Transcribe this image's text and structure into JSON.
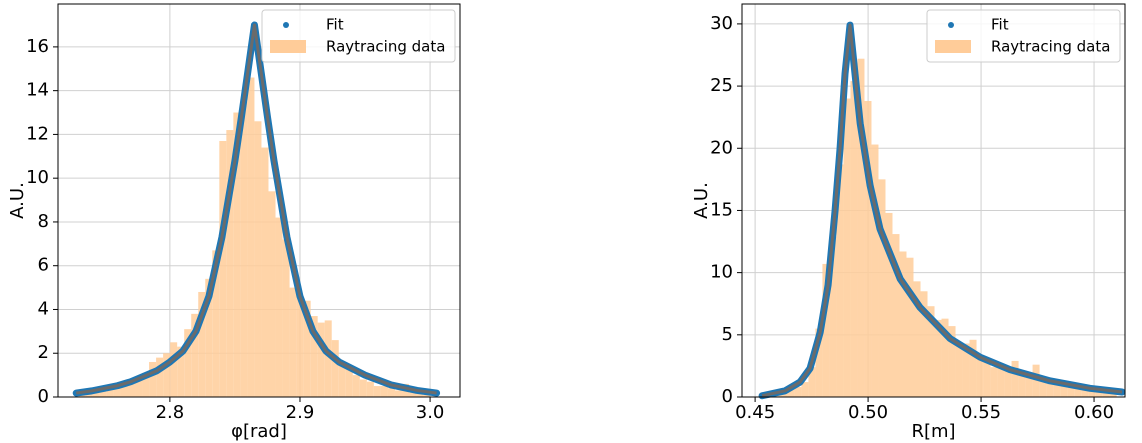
{
  "chart_data": [
    {
      "type": "histogram",
      "xlabel": "φ[rad]",
      "ylabel": "A.U.",
      "xlim": [
        2.714,
        3.023
      ],
      "ylim": [
        0,
        17.96
      ],
      "xticks": [
        2.8,
        2.9,
        {
          "value": 3,
          "label": "3.0"
        }
      ],
      "yticks": [
        0,
        2,
        4,
        6,
        8,
        10,
        12,
        14,
        16
      ],
      "grid": true,
      "legend": "upper right",
      "fit": {
        "name": "Fit",
        "color": "#1f77b4",
        "x": [
          2.728,
          2.74,
          2.75,
          2.76,
          2.77,
          2.78,
          2.79,
          2.8,
          2.81,
          2.82,
          2.83,
          2.84,
          2.85,
          2.855,
          2.86,
          2.865,
          2.87,
          2.875,
          2.88,
          2.89,
          2.9,
          2.91,
          2.92,
          2.93,
          2.95,
          2.97,
          2.99,
          3.005
        ],
        "values": [
          0.18,
          0.28,
          0.4,
          0.52,
          0.7,
          0.95,
          1.2,
          1.6,
          2.1,
          3.0,
          4.6,
          7.3,
          10.8,
          12.8,
          14.9,
          17,
          14.9,
          12.8,
          10.8,
          7.3,
          4.6,
          3.0,
          2.1,
          1.6,
          1.0,
          0.55,
          0.3,
          0.18
        ]
      },
      "hist": {
        "name": "Raytracing data",
        "color": "#ffcc99",
        "bins": [
          2.73,
          2.7354,
          2.7408,
          2.7462,
          2.7516,
          2.757,
          2.7624,
          2.7678,
          2.7732,
          2.7786,
          2.784,
          2.7894,
          2.7948,
          2.8002,
          2.8056,
          2.811,
          2.8164,
          2.8218,
          2.8272,
          2.8326,
          2.838,
          2.8434,
          2.8488,
          2.8542,
          2.8596,
          2.865,
          2.8704,
          2.8758,
          2.8812,
          2.8866,
          2.892,
          2.8974,
          2.9028,
          2.9082,
          2.9136,
          2.919,
          2.9244,
          2.9298,
          2.9352,
          2.9406,
          2.946,
          2.9514,
          2.9568,
          2.9622,
          2.9676,
          2.973,
          2.9784,
          2.9838,
          2.9892,
          2.9946,
          3.0
        ],
        "values": [
          0.1,
          0.15,
          0.2,
          0.25,
          0.35,
          0.45,
          0.5,
          0.6,
          0.9,
          1.1,
          1.6,
          1.8,
          2.0,
          2.5,
          2.3,
          3.1,
          3.8,
          4.8,
          5.4,
          6.7,
          11.7,
          12.2,
          13.0,
          13.5,
          14.6,
          12.6,
          11.4,
          9.4,
          8.2,
          7.2,
          5.0,
          4.6,
          4.4,
          3.7,
          3.4,
          3.5,
          2.6,
          1.6,
          1.3,
          1.0,
          0.8,
          0.7,
          0.5,
          0.5,
          0.4,
          0.3,
          0.6,
          0.2,
          0.15,
          0.1
        ]
      }
    },
    {
      "type": "histogram",
      "xlabel": "R[m]",
      "ylabel": "A.U.",
      "xlim": [
        0.4442,
        0.6137
      ],
      "ylim": [
        0,
        31.6
      ],
      "xticks": [
        0.45,
        {
          "value": 0.5,
          "label": "0.50"
        },
        0.55,
        {
          "value": 0.6,
          "label": "0.60"
        }
      ],
      "yticks": [
        0,
        5,
        10,
        15,
        20,
        25,
        30
      ],
      "grid": true,
      "legend": "upper right",
      "fit": {
        "name": "Fit",
        "color": "#1f77b4",
        "x": [
          0.4531,
          0.4633,
          0.4699,
          0.4743,
          0.4788,
          0.4823,
          0.4854,
          0.4876,
          0.4898,
          0.492,
          0.4942,
          0.4965,
          0.5009,
          0.5053,
          0.5142,
          0.523,
          0.5363,
          0.5496,
          0.5628,
          0.5805,
          0.5982,
          0.6124
        ],
        "values": [
          0.1,
          0.5,
          1.2,
          2.3,
          5.2,
          9,
          15,
          20,
          26,
          29.9,
          26,
          22,
          17,
          13.5,
          9.5,
          7.2,
          4.7,
          3.2,
          2.2,
          1.3,
          0.7,
          0.4
        ]
      },
      "hist": {
        "name": "Raytracing data",
        "color": "#ffcc99",
        "bins": [
          0.455,
          0.4581,
          0.4612,
          0.4643,
          0.4674,
          0.4705,
          0.4736,
          0.4767,
          0.4798,
          0.4829,
          0.486,
          0.4891,
          0.4922,
          0.4953,
          0.4984,
          0.5015,
          0.5046,
          0.5077,
          0.5108,
          0.5139,
          0.517,
          0.5201,
          0.5232,
          0.5263,
          0.5294,
          0.5325,
          0.5356,
          0.5387,
          0.5418,
          0.5449,
          0.548,
          0.5511,
          0.5542,
          0.5573,
          0.5604,
          0.5635,
          0.5666,
          0.5697,
          0.5728,
          0.5759,
          0.579,
          0.5821,
          0.5852,
          0.5883,
          0.5914,
          0.5945,
          0.5976,
          0.6007,
          0.6038,
          0.6069,
          0.61
        ],
        "values": [
          0.1,
          0.2,
          0.3,
          0.6,
          0.8,
          1.2,
          2.4,
          5.5,
          10.7,
          12.9,
          18.7,
          24.0,
          25.4,
          27.2,
          23.8,
          20.3,
          17.5,
          14.8,
          13.1,
          11.7,
          11.2,
          9.3,
          8.5,
          7.3,
          6.2,
          6.3,
          5.7,
          4.4,
          4.3,
          4.6,
          3.2,
          2.8,
          2.4,
          2.6,
          2.1,
          2.9,
          1.9,
          1.6,
          2.6,
          1.4,
          1.1,
          1.4,
          0.9,
          1.2,
          0.7,
          0.6,
          0.9,
          0.5,
          0.4,
          0.3
        ]
      }
    }
  ]
}
